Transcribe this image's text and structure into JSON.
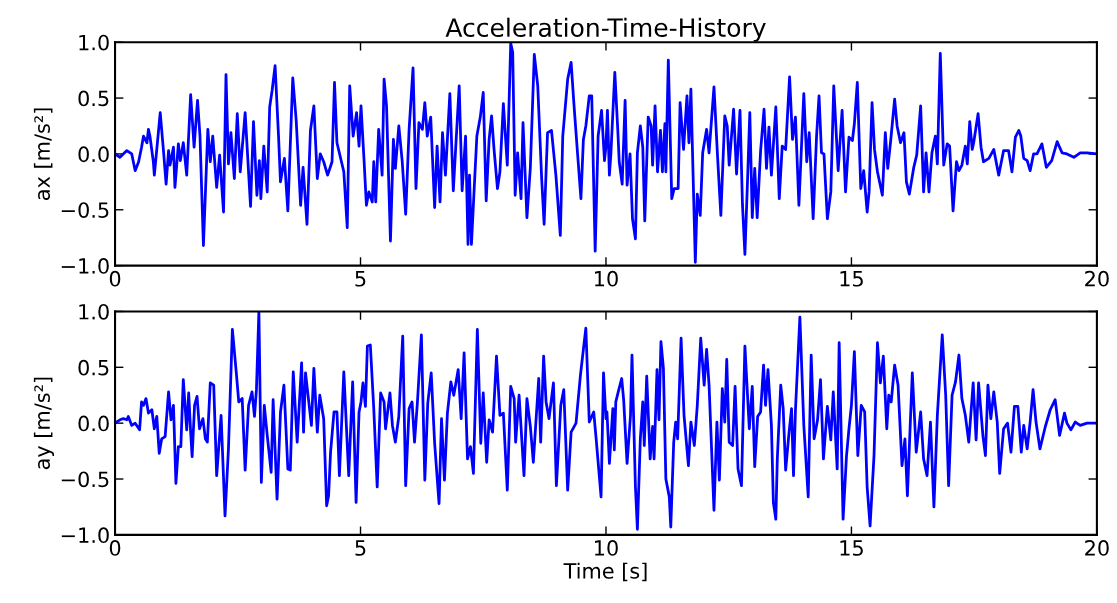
{
  "chart_data": [
    {
      "type": "line",
      "title": "Acceleration-Time-History",
      "ylabel": "ax [m/s²]",
      "xlim": [
        0,
        20
      ],
      "ylim": [
        -1.0,
        1.0
      ],
      "xticks": [
        0,
        5,
        10,
        15,
        20
      ],
      "yticks": [
        {
          "value": -1.0,
          "label": "−1.0"
        },
        {
          "value": -0.5,
          "label": "−0.5"
        },
        {
          "value": 0.0,
          "label": "0.0"
        },
        {
          "value": 0.5,
          "label": "0.5"
        },
        {
          "value": 1.0,
          "label": "1.0"
        }
      ],
      "grid": false,
      "marker": "none",
      "line_style": "solid",
      "series": [
        {
          "color": "#0000ff",
          "x": [
            0,
            0.1,
            0.24,
            0.34,
            0.41,
            0.48,
            0.54,
            0.58,
            0.65,
            0.68,
            0.71,
            0.78,
            0.8,
            0.85,
            0.92,
            0.99,
            1.04,
            1.09,
            1.12,
            1.19,
            1.22,
            1.29,
            1.33,
            1.39,
            1.46,
            1.54,
            1.61,
            1.68,
            1.73,
            1.8,
            1.89,
            1.94,
            1.99,
            2.07,
            2.13,
            2.21,
            2.26,
            2.31,
            2.36,
            2.43,
            2.49,
            2.55,
            2.65,
            2.76,
            2.82,
            2.89,
            2.94,
            2.97,
            3.03,
            3.1,
            3.15,
            3.2,
            3.26,
            3.33,
            3.37,
            3.45,
            3.52,
            3.62,
            3.69,
            3.78,
            3.83,
            3.91,
            3.98,
            4.05,
            4.12,
            4.18,
            4.25,
            4.33,
            4.42,
            4.47,
            4.52,
            4.59,
            4.66,
            4.73,
            4.78,
            4.85,
            4.92,
            4.97,
            5.01,
            5.07,
            5.12,
            5.17,
            5.24,
            5.27,
            5.31,
            5.37,
            5.44,
            5.48,
            5.53,
            5.61,
            5.67,
            5.71,
            5.78,
            5.85,
            5.92,
            5.99,
            6.07,
            6.13,
            6.19,
            6.26,
            6.31,
            6.36,
            6.43,
            6.51,
            6.56,
            6.62,
            6.67,
            6.73,
            6.82,
            6.89,
            7.01,
            7.07,
            7.14,
            7.19,
            7.22,
            7.26,
            7.31,
            7.37,
            7.44,
            7.5,
            7.56,
            7.62,
            7.67,
            7.72,
            7.79,
            7.84,
            7.91,
            7.99,
            8.06,
            8.1,
            8.15,
            8.2,
            8.27,
            8.31,
            8.39,
            8.46,
            8.54,
            8.61,
            8.69,
            8.74,
            8.81,
            8.89,
            8.98,
            9.07,
            9.12,
            9.22,
            9.29,
            9.35,
            9.42,
            9.49,
            9.54,
            9.59,
            9.66,
            9.71,
            9.78,
            9.84,
            9.91,
            9.97,
            10.0,
            10.03,
            10.07,
            10.1,
            10.18,
            10.24,
            10.27,
            10.33,
            10.39,
            10.43,
            10.49,
            10.54,
            10.6,
            10.64,
            10.7,
            10.75,
            10.79,
            10.86,
            10.92,
            10.95,
            11.0,
            11.05,
            11.11,
            11.15,
            11.2,
            11.22,
            11.27,
            11.34,
            11.39,
            11.47,
            11.51,
            11.58,
            11.65,
            11.69,
            11.73,
            11.82,
            11.86,
            11.92,
            11.97,
            12.05,
            12.1,
            12.2,
            12.27,
            12.34,
            12.42,
            12.47,
            12.51,
            12.6,
            12.66,
            12.73,
            12.78,
            12.83,
            12.88,
            12.93,
            12.98,
            13.03,
            13.08,
            13.15,
            13.22,
            13.27,
            13.32,
            13.37,
            13.46,
            13.53,
            13.59,
            13.66,
            13.74,
            13.8,
            13.86,
            13.93,
            14.03,
            14.09,
            14.14,
            14.22,
            14.29,
            14.34,
            14.39,
            14.44,
            14.51,
            14.58,
            14.64,
            14.73,
            14.81,
            14.88,
            14.95,
            15.02,
            15.06,
            15.12,
            15.19,
            15.25,
            15.32,
            15.36,
            15.42,
            15.47,
            15.53,
            15.63,
            15.69,
            15.74,
            15.8,
            15.88,
            15.93,
            16.0,
            16.07,
            16.12,
            16.18,
            16.27,
            16.33,
            16.41,
            16.47,
            16.52,
            16.58,
            16.64,
            16.71,
            16.75,
            16.81,
            16.88,
            16.95,
            17.0,
            17.07,
            17.14,
            17.19,
            17.25,
            17.32,
            17.36,
            17.41,
            17.46,
            17.49,
            17.58,
            17.64,
            17.69,
            17.8,
            17.9,
            18.0,
            18.1,
            18.2,
            18.27,
            18.34,
            18.41,
            18.45,
            18.51,
            18.58,
            18.64,
            18.71,
            18.78,
            18.88,
            18.97,
            19.08,
            19.19,
            19.29,
            19.39,
            19.53,
            19.66,
            19.8,
            20.0
          ],
          "values": [
            0,
            -0.03,
            0.03,
            0,
            -0.15,
            -0.07,
            0.06,
            0.16,
            0.1,
            0.22,
            0.16,
            -0.07,
            -0.19,
            0.04,
            0.37,
            0.01,
            -0.27,
            0.03,
            -0.1,
            0.06,
            -0.3,
            0.09,
            -0.06,
            0.1,
            -0.19,
            0.53,
            0.06,
            0.48,
            0.16,
            -0.82,
            0.22,
            -0.07,
            0.16,
            -0.3,
            -0.01,
            -0.52,
            0.71,
            -0.09,
            0.19,
            -0.22,
            0.36,
            -0.16,
            0.37,
            -0.47,
            0.29,
            -0.37,
            -0.06,
            -0.4,
            0.07,
            -0.34,
            0.42,
            0.57,
            0.79,
            0.16,
            -0.25,
            -0.04,
            -0.51,
            0.68,
            0.3,
            -0.46,
            -0.12,
            -0.63,
            0.21,
            0.43,
            -0.22,
            0,
            -0.07,
            -0.19,
            -0.07,
            0.64,
            0.1,
            -0.03,
            -0.16,
            -0.66,
            0.61,
            0.16,
            0.37,
            0.07,
            0.43,
            -0.04,
            -0.46,
            -0.34,
            -0.43,
            -0.07,
            -0.43,
            0.22,
            -0.19,
            0.67,
            0.43,
            -0.78,
            0.13,
            -0.13,
            0.25,
            -0.07,
            -0.54,
            0.22,
            0.77,
            -0.31,
            0.28,
            0.22,
            0.46,
            0.16,
            0.33,
            -0.48,
            0.07,
            -0.43,
            0.19,
            -0.19,
            0.54,
            -0.33,
            0.61,
            -0.33,
            0.16,
            -0.81,
            -0.19,
            -0.81,
            -0.36,
            0.16,
            0.33,
            0.55,
            -0.42,
            0.13,
            0.34,
            0.04,
            -0.31,
            -0.16,
            0.45,
            -0.1,
            0.99,
            0.91,
            -0.37,
            0.01,
            -0.4,
            0.28,
            -0.57,
            -0.12,
            0.89,
            0.61,
            -0.22,
            -0.63,
            0.19,
            0.21,
            -0.19,
            -0.73,
            0.16,
            0.67,
            0.82,
            0.43,
            0.01,
            -0.4,
            0.13,
            0.25,
            0.52,
            0.52,
            -0.87,
            0.16,
            0.39,
            -0.06,
            0.07,
            0.39,
            -0.19,
            0,
            0.73,
            0.22,
            -0.07,
            -0.27,
            0.48,
            -0.28,
            0,
            -0.58,
            -0.76,
            0.01,
            0.25,
            0.06,
            -0.6,
            0.33,
            0.25,
            -0.1,
            0.43,
            -0.16,
            0.21,
            -0.16,
            0.27,
            -0.16,
            0.84,
            -0.4,
            -0.31,
            -0.31,
            0.46,
            0.04,
            0.52,
            0.1,
            0.58,
            -0.97,
            -0.36,
            -0.55,
            0.01,
            0.22,
            0.01,
            0.6,
            0,
            -0.55,
            0.34,
            0.25,
            -0.1,
            0.4,
            -0.18,
            0.39,
            -0.45,
            -0.9,
            -0.28,
            0.37,
            -0.57,
            -0.13,
            -0.57,
            0.03,
            0.4,
            -0.13,
            0.24,
            -0.19,
            0.42,
            -0.4,
            0.07,
            0.04,
            0.69,
            0.13,
            0.33,
            -0.46,
            0.54,
            -0.07,
            0.19,
            -0.58,
            0.16,
            0.52,
            0.01,
            0,
            -0.58,
            -0.34,
            0.61,
            -0.15,
            0.39,
            -0.34,
            0.15,
            0.12,
            0.27,
            0.64,
            -0.31,
            -0.15,
            -0.52,
            -0.34,
            0.46,
            0.04,
            -0.16,
            -0.37,
            0.19,
            -0.13,
            0.12,
            0.49,
            0.25,
            0.1,
            0.19,
            -0.25,
            -0.36,
            -0.12,
            -0.01,
            0.43,
            -0.34,
            0.01,
            -0.34,
            0.01,
            0.16,
            -0.09,
            0.9,
            -0.1,
            0.09,
            0.07,
            -0.51,
            -0.07,
            -0.15,
            -0.1,
            0.07,
            -0.09,
            0.29,
            0.04,
            0.1,
            0.36,
            0.06,
            -0.07,
            -0.04,
            0.04,
            -0.19,
            0.03,
            0.03,
            -0.16,
            0.15,
            0.21,
            0.16,
            -0.04,
            -0.06,
            -0.15,
            0,
            0,
            0.09,
            -0.12,
            -0.06,
            0.11,
            0.01,
            0,
            -0.03,
            0.01,
            0.01,
            0
          ]
        }
      ]
    },
    {
      "type": "line",
      "xlabel": "Time [s]",
      "ylabel": "ay [m/s²]",
      "xlim": [
        0,
        20
      ],
      "ylim": [
        -1.0,
        1.0
      ],
      "xticks": [
        0,
        5,
        10,
        15,
        20
      ],
      "yticks": [
        {
          "value": -1.0,
          "label": "−1.0"
        },
        {
          "value": -0.5,
          "label": "−0.5"
        },
        {
          "value": 0.0,
          "label": "0.0"
        },
        {
          "value": 0.5,
          "label": "0.5"
        },
        {
          "value": 1.0,
          "label": "1.0"
        }
      ],
      "grid": false,
      "marker": "none",
      "line_style": "solid",
      "series": [
        {
          "color": "#0000ff",
          "x": [
            0,
            0.1,
            0.17,
            0.24,
            0.27,
            0.34,
            0.41,
            0.5,
            0.54,
            0.58,
            0.63,
            0.68,
            0.75,
            0.8,
            0.85,
            0.9,
            0.95,
            1.02,
            1.09,
            1.14,
            1.19,
            1.24,
            1.29,
            1.34,
            1.39,
            1.46,
            1.5,
            1.54,
            1.57,
            1.62,
            1.67,
            1.72,
            1.79,
            1.84,
            1.88,
            1.94,
            2.01,
            2.07,
            2.16,
            2.24,
            2.31,
            2.39,
            2.47,
            2.52,
            2.59,
            2.65,
            2.72,
            2.79,
            2.84,
            2.88,
            2.93,
            2.98,
            3.04,
            3.1,
            3.18,
            3.22,
            3.3,
            3.37,
            3.44,
            3.52,
            3.57,
            3.63,
            3.71,
            3.8,
            3.84,
            3.88,
            4.0,
            4.05,
            4.12,
            4.17,
            4.25,
            4.31,
            4.35,
            4.39,
            4.46,
            4.52,
            4.57,
            4.66,
            4.76,
            4.84,
            4.91,
            4.97,
            5.01,
            5.05,
            5.1,
            5.14,
            5.2,
            5.27,
            5.34,
            5.41,
            5.48,
            5.51,
            5.6,
            5.65,
            5.71,
            5.78,
            5.86,
            5.92,
            5.99,
            6.05,
            6.1,
            6.16,
            6.24,
            6.31,
            6.37,
            6.44,
            6.51,
            6.6,
            6.65,
            6.71,
            6.77,
            6.84,
            6.9,
            6.99,
            7.05,
            7.11,
            7.18,
            7.24,
            7.3,
            7.38,
            7.45,
            7.5,
            7.57,
            7.62,
            7.69,
            7.77,
            7.84,
            7.91,
            7.99,
            8.06,
            8.13,
            8.16,
            8.23,
            8.33,
            8.39,
            8.46,
            8.52,
            8.63,
            8.67,
            8.73,
            8.78,
            8.84,
            8.93,
            8.99,
            9.08,
            9.14,
            9.22,
            9.29,
            9.39,
            9.48,
            9.54,
            9.59,
            9.66,
            9.75,
            9.8,
            9.9,
            9.95,
            10.0,
            10.02,
            10.07,
            10.14,
            10.17,
            10.2,
            10.25,
            10.32,
            10.36,
            10.43,
            10.5,
            10.53,
            10.6,
            10.64,
            10.7,
            10.75,
            10.78,
            10.83,
            10.9,
            10.95,
            10.98,
            11.04,
            11.08,
            11.12,
            11.17,
            11.22,
            11.29,
            11.32,
            11.38,
            11.42,
            11.46,
            11.53,
            11.59,
            11.68,
            11.73,
            11.8,
            11.86,
            11.93,
            12.0,
            12.05,
            12.1,
            12.2,
            12.26,
            12.31,
            12.37,
            12.42,
            12.46,
            12.51,
            12.58,
            12.63,
            12.69,
            12.76,
            12.83,
            12.92,
            12.98,
            13.03,
            13.09,
            13.15,
            13.21,
            13.25,
            13.3,
            13.37,
            13.41,
            13.46,
            13.49,
            13.56,
            13.61,
            13.66,
            13.73,
            13.78,
            13.82,
            13.86,
            13.95,
            14.03,
            14.12,
            14.18,
            14.24,
            14.31,
            14.37,
            14.43,
            14.51,
            14.58,
            14.63,
            14.71,
            14.75,
            14.83,
            14.9,
            14.95,
            15.0,
            15.06,
            15.13,
            15.2,
            15.27,
            15.32,
            15.38,
            15.46,
            15.53,
            15.59,
            15.65,
            15.72,
            15.76,
            15.81,
            15.88,
            15.95,
            16.03,
            16.09,
            16.14,
            16.24,
            16.32,
            16.41,
            16.47,
            16.54,
            16.61,
            16.68,
            16.75,
            16.85,
            16.92,
            16.98,
            17.05,
            17.12,
            17.19,
            17.25,
            17.32,
            17.39,
            17.48,
            17.54,
            17.59,
            17.68,
            17.73,
            17.78,
            17.84,
            17.9,
            17.97,
            18.02,
            18.1,
            18.18,
            18.25,
            18.32,
            18.39,
            18.46,
            18.51,
            18.58,
            18.64,
            18.7,
            18.76,
            18.84,
            18.95,
            19.05,
            19.15,
            19.24,
            19.34,
            19.39,
            19.47,
            19.56,
            19.66,
            19.8,
            20.0
          ],
          "values": [
            0,
            0.03,
            0.04,
            0.03,
            0.06,
            -0.02,
            0,
            -0.06,
            0.19,
            0.16,
            0.22,
            0.09,
            0.12,
            -0.05,
            0.06,
            -0.27,
            -0.14,
            -0.12,
            0.28,
            0.03,
            0.16,
            -0.54,
            -0.21,
            -0.21,
            0.39,
            -0.06,
            0.27,
            -0.08,
            -0.3,
            0.16,
            0.24,
            -0.05,
            0.04,
            -0.14,
            -0.17,
            0.36,
            0.34,
            -0.47,
            0.07,
            -0.83,
            -0.23,
            0.84,
            0.45,
            0.19,
            0.22,
            -0.42,
            0.16,
            0.28,
            0.06,
            0.3,
            1.0,
            -0.53,
            0.16,
            -0.11,
            -0.44,
            0.21,
            -0.68,
            0.1,
            0.34,
            -0.41,
            -0.42,
            0.46,
            -0.17,
            0.54,
            -0.08,
            0.45,
            -0.02,
            0.49,
            -0.08,
            0.25,
            0.04,
            -0.74,
            -0.65,
            -0.26,
            0.1,
            0.1,
            -0.47,
            0.46,
            -0.47,
            0.37,
            -0.71,
            0.1,
            0.19,
            0.36,
            0.15,
            0.69,
            0.7,
            0.13,
            -0.57,
            0.27,
            0.19,
            -0.05,
            0.27,
            -0.02,
            -0.17,
            0.06,
            0.78,
            -0.56,
            0.13,
            0.19,
            -0.17,
            0.19,
            0.79,
            -0.51,
            0.18,
            0.45,
            -0.18,
            -0.72,
            0.04,
            -0.51,
            0.09,
            0.37,
            0.25,
            0.48,
            0.04,
            0.63,
            -0.32,
            -0.21,
            -0.45,
            0.84,
            -0.18,
            0.27,
            -0.35,
            0.03,
            -0.08,
            0.6,
            0.07,
            0.09,
            -0.6,
            0.33,
            0.22,
            -0.17,
            0.25,
            -0.47,
            0.22,
            -0.03,
            -0.35,
            0.4,
            -0.17,
            0.6,
            0.19,
            0.04,
            0.36,
            -0.56,
            0.16,
            0.3,
            -0.6,
            -0.08,
            0,
            0.43,
            0.66,
            0.85,
            0.01,
            0.1,
            -0.14,
            -0.66,
            0.45,
            0.04,
            0.1,
            -0.36,
            0.13,
            -0.24,
            0.19,
            0.28,
            0.4,
            0.21,
            -0.36,
            0.07,
            0.61,
            -0.57,
            -0.95,
            -0.14,
            0.19,
            -0.2,
            0.42,
            -0.32,
            -0.03,
            -0.32,
            0.48,
            0.03,
            0.73,
            0.49,
            -0.5,
            -0.66,
            -0.93,
            -0.17,
            0.01,
            -0.14,
            0.76,
            0.07,
            -0.38,
            0.01,
            -0.2,
            0.16,
            0.76,
            0.34,
            0.66,
            0.34,
            -0.78,
            0.01,
            -0.51,
            0.31,
            0.01,
            0.57,
            -0.17,
            -0.2,
            0.33,
            -0.41,
            -0.56,
            0.69,
            -0.05,
            0.33,
            -0.39,
            0.06,
            0.1,
            0.52,
            0.16,
            0.48,
            -0.02,
            -0.71,
            -0.86,
            -0.32,
            0.34,
            0.13,
            -0.42,
            -0.08,
            0.13,
            -0.47,
            0.12,
            0.95,
            -0.02,
            -0.66,
            0.61,
            -0.14,
            0.03,
            0.39,
            -0.32,
            0.15,
            -0.15,
            0.28,
            -0.41,
            0.72,
            -0.86,
            -0.29,
            -0.05,
            0.16,
            0.64,
            -0.29,
            0.16,
            0.1,
            -0.57,
            -0.92,
            -0.29,
            0.72,
            0.36,
            0.6,
            -0.05,
            0.25,
            0.19,
            0.52,
            0.34,
            -0.38,
            -0.14,
            -0.65,
            0.45,
            -0.26,
            0.1,
            -0.32,
            -0.47,
            0.01,
            -0.75,
            0.07,
            0.79,
            0.25,
            -0.56,
            0.25,
            0.37,
            0.61,
            0.22,
            0.07,
            -0.17,
            0.36,
            -0.15,
            0.36,
            -0.12,
            -0.29,
            0.34,
            0.04,
            0.28,
            0.01,
            -0.45,
            -0.05,
            0,
            -0.26,
            0.15,
            0.15,
            -0.26,
            -0.02,
            -0.23,
            0.01,
            0.3,
            0.01,
            -0.23,
            -0.03,
            0.12,
            0.21,
            -0.11,
            0.09,
            0,
            -0.06,
            0.01,
            -0.02,
            0,
            0
          ]
        }
      ]
    }
  ]
}
